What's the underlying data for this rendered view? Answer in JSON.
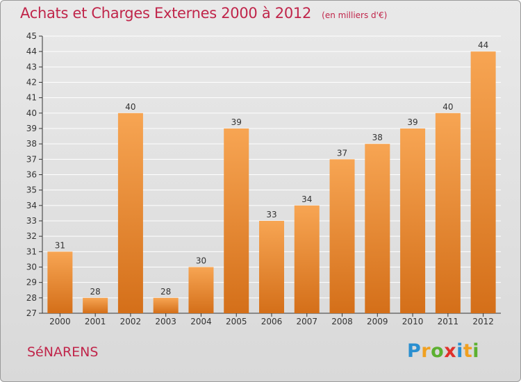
{
  "header": {
    "title": "Achats et Charges Externes 2000 à 2012",
    "unit": "(en milliers d'€)"
  },
  "footer": {
    "commune": "SéNARENS",
    "logo": {
      "letters": [
        "P",
        "r",
        "o",
        "x",
        "i",
        "t",
        "i"
      ],
      "colors": [
        "#2a8fd0",
        "#f0a020",
        "#5cb030",
        "#e0302a",
        "#2a8fd0",
        "#f0a020",
        "#5cb030"
      ]
    }
  },
  "colors": {
    "bar_top": "#f7a553",
    "bar_bottom": "#d46f19",
    "grid": "#ffffff",
    "title": "#c0254a"
  },
  "chart_data": {
    "type": "bar",
    "title": "Achats et Charges Externes 2000 à 2012",
    "subtitle": "(en milliers d'€)",
    "categories": [
      "2000",
      "2001",
      "2002",
      "2003",
      "2004",
      "2005",
      "2006",
      "2007",
      "2008",
      "2009",
      "2010",
      "2011",
      "2012"
    ],
    "values": [
      31,
      28,
      40,
      28,
      30,
      39,
      33,
      34,
      37,
      38,
      39,
      40,
      44
    ],
    "data_labels": [
      "31",
      "28",
      "40",
      "28",
      "30",
      "39",
      "33",
      "34",
      "37",
      "38",
      "39",
      "40",
      "44"
    ],
    "ylim": [
      27,
      45
    ],
    "yticks": [
      "27",
      "28",
      "29",
      "30",
      "31",
      "32",
      "33",
      "34",
      "35",
      "36",
      "37",
      "38",
      "39",
      "40",
      "41",
      "42",
      "43",
      "44",
      "45"
    ],
    "grid": true,
    "legend": "none"
  }
}
